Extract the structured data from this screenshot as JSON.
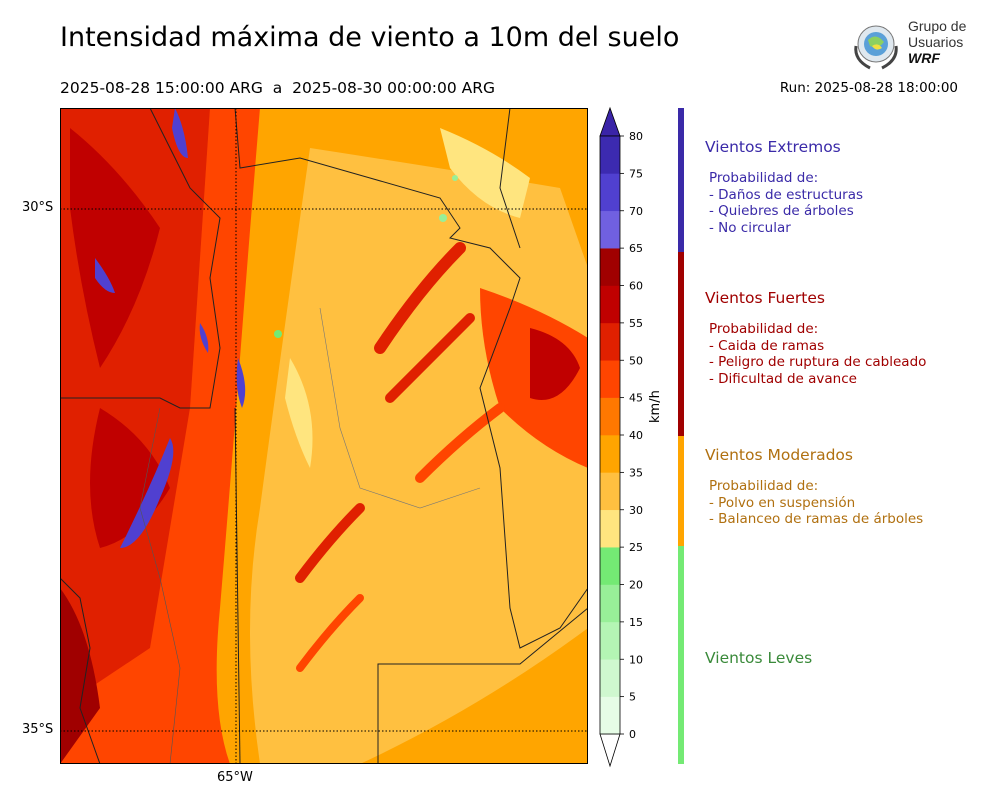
{
  "header": {
    "title": "Intensidad máxima de viento a 10m del suelo",
    "valid_range": "2025-08-28 15:00:00 ARG  a  2025-08-30 00:00:00 ARG",
    "run": "Run: 2025-08-28 18:00:00"
  },
  "logo": {
    "line1": "Grupo de",
    "line2": "Usuarios",
    "line3": "WRF"
  },
  "map": {
    "lat_labels": [
      "30°S",
      "35°S"
    ],
    "lon_labels": [
      "65°W"
    ]
  },
  "colorbar": {
    "unit": "km/h",
    "ticks": [
      "0",
      "5",
      "10",
      "15",
      "20",
      "25",
      "30",
      "35",
      "40",
      "45",
      "50",
      "55",
      "60",
      "65",
      "70",
      "75",
      "80"
    ],
    "colors": [
      "#e6fde6",
      "#cff8cf",
      "#b4f5b4",
      "#98ef98",
      "#74ea74",
      "#ffe57f",
      "#ffc040",
      "#ffa500",
      "#ff7800",
      "#ff4500",
      "#e02000",
      "#c00000",
      "#a00000",
      "#7060e0",
      "#5040d0",
      "#3c2ab0"
    ],
    "over_color": "#3a24a8",
    "under_color": "#ffffff"
  },
  "categories": [
    {
      "name": "Vientos Extremos",
      "color": "#3a2aa8",
      "text_color": "#3a2aa8",
      "intro": "Probabilidad de:",
      "items": [
        "- Daños de estructuras",
        "- Quiebres de árboles",
        "- No circular"
      ]
    },
    {
      "name": "Vientos Fuertes",
      "color": "#a00000",
      "text_color": "#a00000",
      "intro": "Probabilidad de:",
      "items": [
        "- Caida de ramas",
        "- Peligro de ruptura de cableado",
        "- Dificultad de avance"
      ]
    },
    {
      "name": "Vientos Moderados",
      "color": "#ffa500",
      "text_color": "#b07010",
      "intro": "Probabilidad de:",
      "items": [
        "- Polvo en suspensión",
        "- Balanceo de ramas de árboles"
      ]
    },
    {
      "name": "Vientos Leves",
      "color": "#74ea74",
      "text_color": "#3a8a3a",
      "intro": "",
      "items": []
    }
  ]
}
